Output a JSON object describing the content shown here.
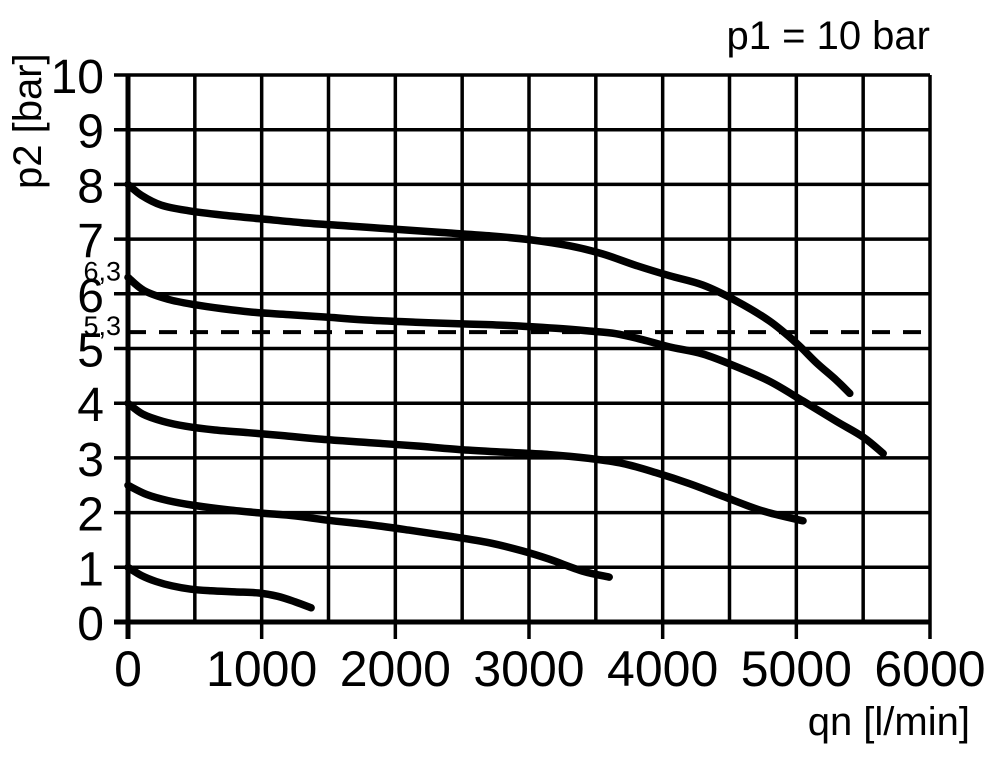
{
  "colors": {
    "ink": "#000000",
    "background": "#ffffff"
  },
  "chart_data": {
    "type": "line",
    "title": "p1 = 10 bar",
    "xlabel": "qn [l/min]",
    "ylabel": "p2 [bar]",
    "xlim": [
      0,
      6000
    ],
    "ylim": [
      0,
      10
    ],
    "x_ticks": [
      0,
      1000,
      2000,
      3000,
      4000,
      5000,
      6000
    ],
    "x_minor_grid_step": 500,
    "y_ticks": [
      0,
      1,
      2,
      3,
      4,
      5,
      6,
      7,
      8,
      9,
      10
    ],
    "extra_y_labels": [
      {
        "value": 6.3,
        "label": "6,3"
      },
      {
        "value": 5.3,
        "label": "5,3"
      }
    ],
    "reference_line": {
      "value": 5.3,
      "style": "dashed"
    },
    "grid": true,
    "legend": "none",
    "series": [
      {
        "id": "set-8-bar",
        "name": "8.0",
        "points": [
          [
            0,
            8.0
          ],
          [
            100,
            7.8
          ],
          [
            250,
            7.62
          ],
          [
            450,
            7.52
          ],
          [
            700,
            7.44
          ],
          [
            1000,
            7.37
          ],
          [
            1300,
            7.3
          ],
          [
            1650,
            7.24
          ],
          [
            2000,
            7.18
          ],
          [
            2350,
            7.12
          ],
          [
            2700,
            7.06
          ],
          [
            3000,
            6.99
          ],
          [
            3300,
            6.88
          ],
          [
            3550,
            6.73
          ],
          [
            3800,
            6.52
          ],
          [
            4050,
            6.33
          ],
          [
            4300,
            6.16
          ],
          [
            4550,
            5.87
          ],
          [
            4800,
            5.5
          ],
          [
            5000,
            5.1
          ],
          [
            5150,
            4.74
          ],
          [
            5300,
            4.42
          ],
          [
            5400,
            4.18
          ]
        ]
      },
      {
        "id": "set-6-3-bar",
        "name": "6.3",
        "points": [
          [
            0,
            6.3
          ],
          [
            120,
            6.06
          ],
          [
            300,
            5.9
          ],
          [
            500,
            5.8
          ],
          [
            700,
            5.73
          ],
          [
            950,
            5.66
          ],
          [
            1200,
            5.62
          ],
          [
            1500,
            5.57
          ],
          [
            1800,
            5.52
          ],
          [
            2150,
            5.48
          ],
          [
            2500,
            5.45
          ],
          [
            2850,
            5.42
          ],
          [
            3200,
            5.37
          ],
          [
            3450,
            5.32
          ],
          [
            3650,
            5.27
          ],
          [
            3850,
            5.16
          ],
          [
            4050,
            5.03
          ],
          [
            4300,
            4.9
          ],
          [
            4550,
            4.67
          ],
          [
            4800,
            4.4
          ],
          [
            5050,
            4.04
          ],
          [
            5300,
            3.67
          ],
          [
            5500,
            3.38
          ],
          [
            5650,
            3.08
          ]
        ]
      },
      {
        "id": "set-4-bar",
        "name": "4.0",
        "points": [
          [
            0,
            4.0
          ],
          [
            110,
            3.8
          ],
          [
            260,
            3.67
          ],
          [
            430,
            3.58
          ],
          [
            650,
            3.51
          ],
          [
            900,
            3.46
          ],
          [
            1150,
            3.41
          ],
          [
            1450,
            3.34
          ],
          [
            1800,
            3.28
          ],
          [
            2150,
            3.22
          ],
          [
            2500,
            3.15
          ],
          [
            2850,
            3.1
          ],
          [
            3150,
            3.06
          ],
          [
            3450,
            2.99
          ],
          [
            3700,
            2.9
          ],
          [
            3950,
            2.73
          ],
          [
            4200,
            2.53
          ],
          [
            4450,
            2.3
          ],
          [
            4750,
            2.03
          ],
          [
            5050,
            1.85
          ]
        ]
      },
      {
        "id": "set-2-5-bar",
        "name": "2.5",
        "points": [
          [
            0,
            2.5
          ],
          [
            140,
            2.33
          ],
          [
            300,
            2.22
          ],
          [
            500,
            2.13
          ],
          [
            750,
            2.05
          ],
          [
            1000,
            1.99
          ],
          [
            1250,
            1.94
          ],
          [
            1500,
            1.86
          ],
          [
            1800,
            1.78
          ],
          [
            2100,
            1.68
          ],
          [
            2400,
            1.57
          ],
          [
            2700,
            1.45
          ],
          [
            2950,
            1.3
          ],
          [
            3150,
            1.15
          ],
          [
            3400,
            0.93
          ],
          [
            3600,
            0.82
          ]
        ]
      },
      {
        "id": "set-1-bar",
        "name": "1.0",
        "points": [
          [
            0,
            1.0
          ],
          [
            100,
            0.85
          ],
          [
            210,
            0.74
          ],
          [
            330,
            0.66
          ],
          [
            470,
            0.6
          ],
          [
            620,
            0.57
          ],
          [
            800,
            0.55
          ],
          [
            980,
            0.53
          ],
          [
            1120,
            0.47
          ],
          [
            1250,
            0.37
          ],
          [
            1370,
            0.26
          ]
        ]
      }
    ]
  }
}
